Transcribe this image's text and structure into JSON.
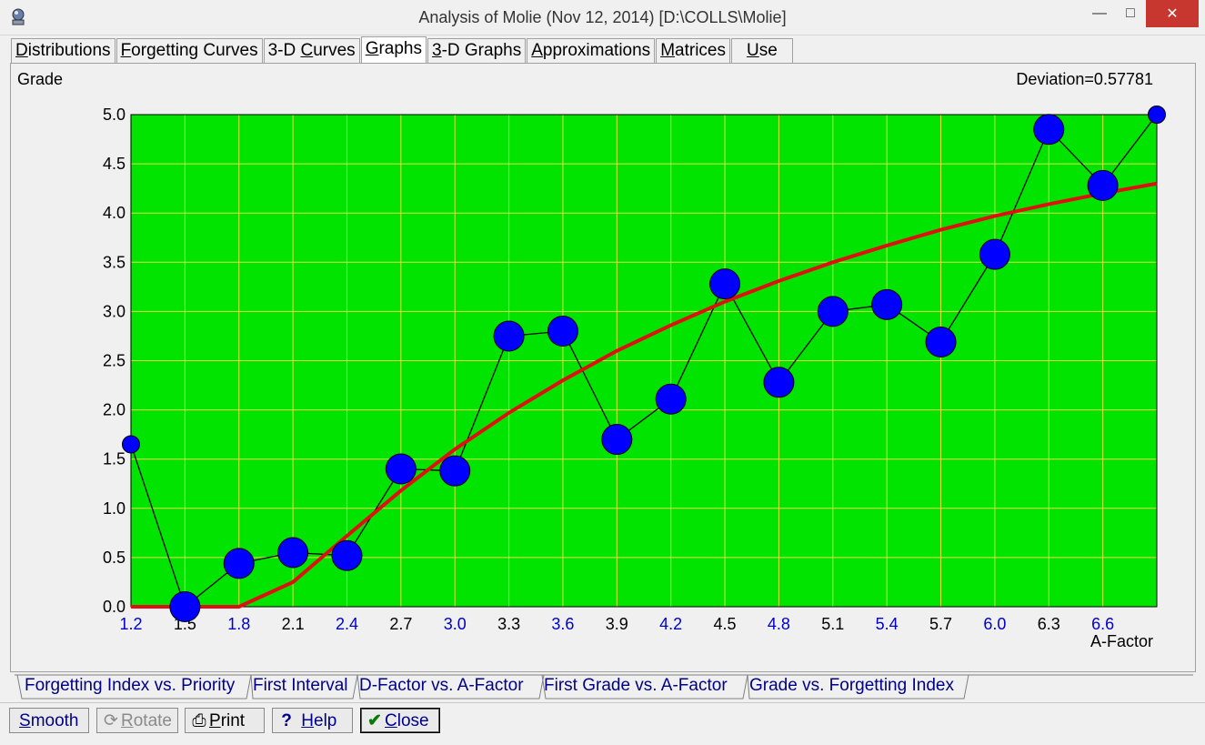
{
  "window": {
    "title": "Analysis of Molie (Nov 12, 2014) [D:\\COLLS\\Molie]",
    "controls": {
      "minimize": "—",
      "maximize": "□",
      "close": "✕"
    }
  },
  "tabs": [
    {
      "pre": "",
      "u": "D",
      "post": "istributions"
    },
    {
      "pre": "",
      "u": "F",
      "post": "orgetting Curves"
    },
    {
      "pre": "3-D ",
      "u": "C",
      "post": "urves"
    },
    {
      "pre": "",
      "u": "G",
      "post": "raphs",
      "active": true
    },
    {
      "pre": "",
      "u": "3",
      "post": "-D Graphs"
    },
    {
      "pre": "",
      "u": "A",
      "post": "pproximations"
    },
    {
      "pre": "",
      "u": "M",
      "post": "atrices"
    },
    {
      "pre": "",
      "u": "U",
      "post": "se"
    }
  ],
  "graph": {
    "y_axis_title": "Grade",
    "deviation": "Deviation=0.57781"
  },
  "chart_data": {
    "type": "scatter",
    "xlabel": "A-Factor",
    "ylabel": "Grade",
    "xlim": [
      1.2,
      6.9
    ],
    "ylim": [
      0.0,
      5.0
    ],
    "x_ticks": [
      "1.2",
      "1.5",
      "1.8",
      "2.1",
      "2.4",
      "2.7",
      "3.0",
      "3.3",
      "3.6",
      "3.9",
      "4.2",
      "4.5",
      "4.8",
      "5.1",
      "5.4",
      "5.7",
      "6.0",
      "6.3",
      "6.6"
    ],
    "y_ticks": [
      "0.0",
      "0.5",
      "1.0",
      "1.5",
      "2.0",
      "2.5",
      "3.0",
      "3.5",
      "4.0",
      "4.5",
      "5.0"
    ],
    "grid": true,
    "colors": {
      "plot_bg": "#00e400",
      "grid": "#e0e040",
      "points": "#0000ff",
      "approximation": "#e01010",
      "connector": "#000000",
      "tick_alt": "#0000cc"
    },
    "series": [
      {
        "x": [
          1.2,
          1.5,
          1.8,
          2.1,
          2.4,
          2.7,
          3.0,
          3.3,
          3.6,
          3.9,
          4.2,
          4.5,
          4.8,
          5.1,
          5.4,
          5.7,
          6.0,
          6.3,
          6.6,
          6.9
        ],
        "y": [
          1.65,
          0.0,
          0.44,
          0.55,
          0.52,
          1.4,
          1.38,
          2.75,
          2.8,
          1.7,
          2.11,
          3.28,
          2.28,
          3.0,
          3.07,
          2.69,
          3.58,
          4.85,
          4.28,
          5.0
        ],
        "size": [
          1,
          2,
          2,
          2,
          2,
          2,
          2,
          2,
          2,
          2,
          2,
          2,
          2,
          2,
          2,
          2,
          2,
          2,
          2,
          1
        ]
      },
      {
        "x": [
          1.2,
          1.5,
          1.8,
          2.1,
          2.4,
          2.7,
          3.0,
          3.3,
          3.6,
          3.9,
          4.2,
          4.5,
          4.8,
          5.1,
          5.4,
          5.7,
          6.0,
          6.3,
          6.6,
          6.9
        ],
        "y": [
          0.0,
          0.0,
          0.0,
          0.25,
          0.72,
          1.18,
          1.6,
          1.97,
          2.3,
          2.6,
          2.86,
          3.1,
          3.31,
          3.5,
          3.67,
          3.83,
          3.97,
          4.09,
          4.2,
          4.3
        ]
      }
    ]
  },
  "subtabs": [
    "Forgetting Index vs. Priority",
    "First Interval",
    "D-Factor vs. A-Factor",
    "First Grade vs. A-Factor",
    "Grade vs. Forgetting Index"
  ],
  "toolbar": {
    "smooth": {
      "u": "S",
      "post": "mooth"
    },
    "rotate": {
      "u": "R",
      "post": "otate"
    },
    "print": {
      "u": "P",
      "post": "rint"
    },
    "help": {
      "u": "H",
      "post": "elp"
    },
    "close": {
      "u": "C",
      "post": "lose"
    }
  }
}
